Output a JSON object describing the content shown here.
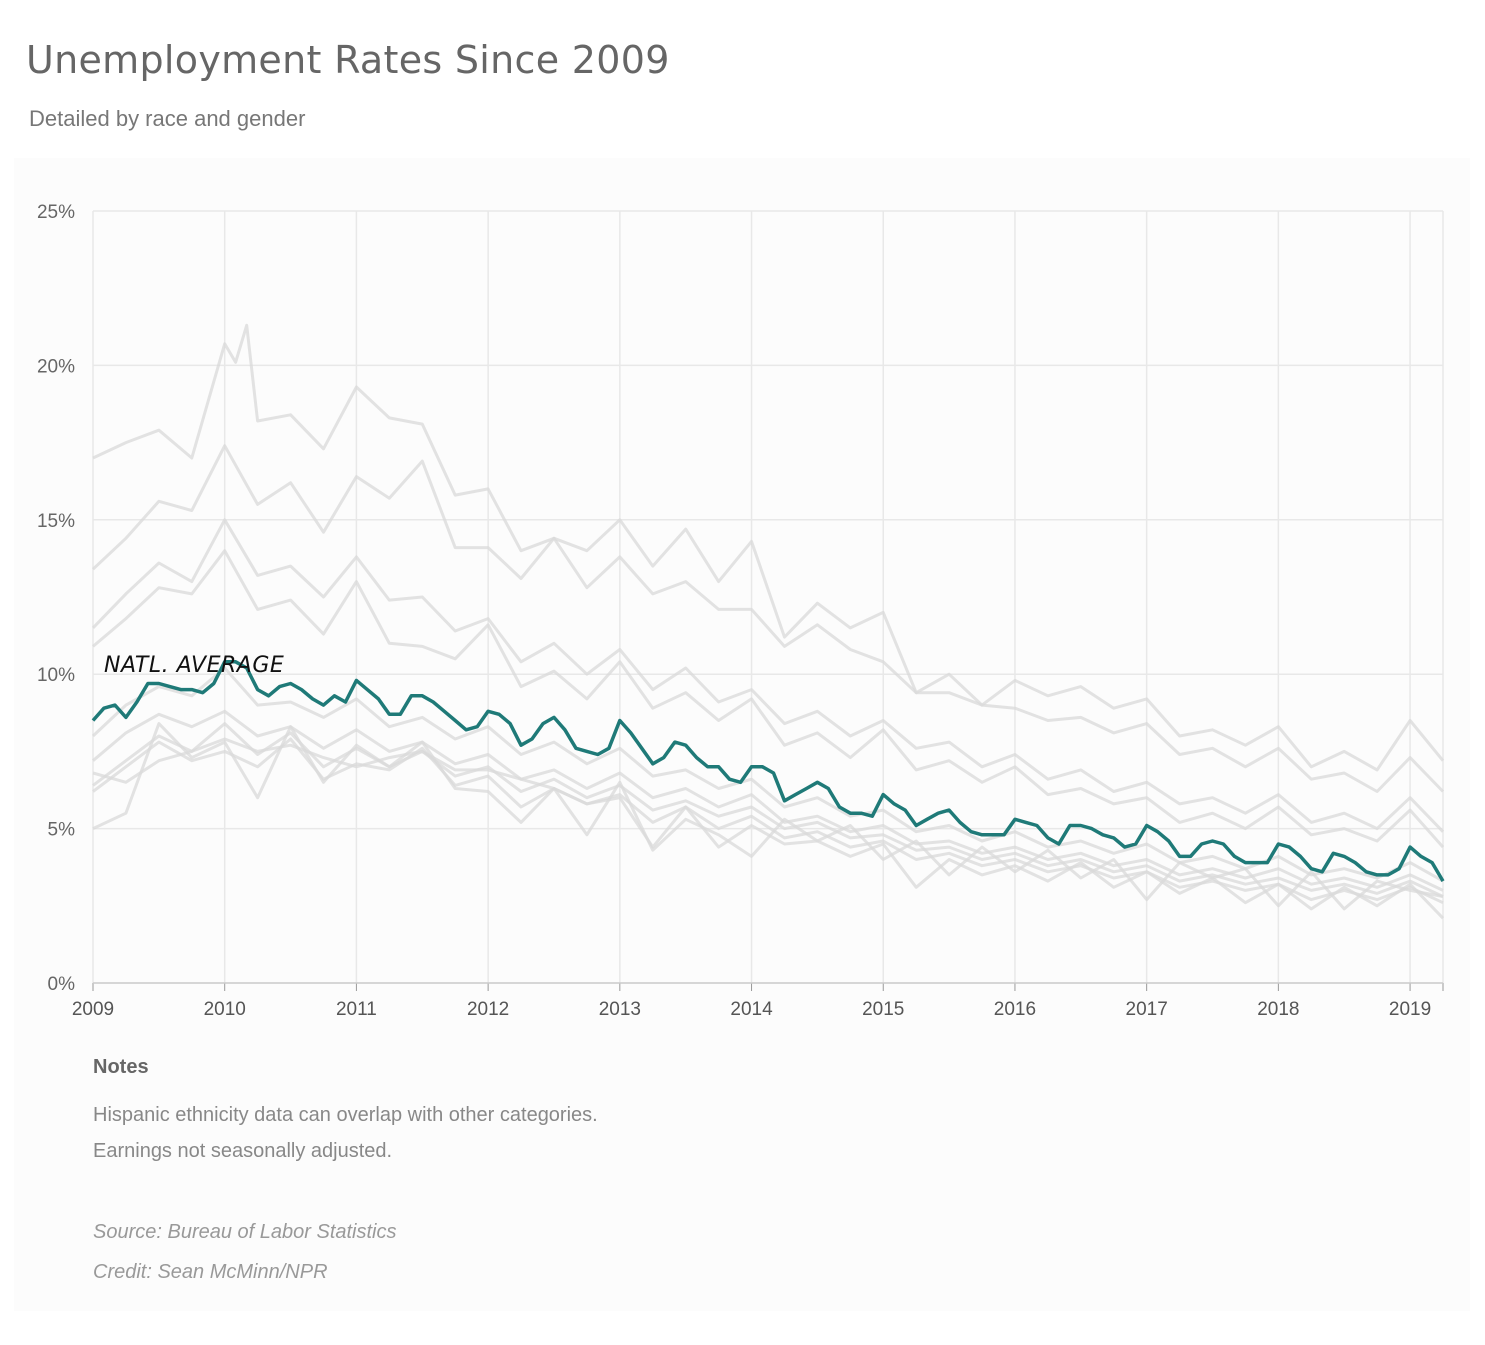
{
  "header": {
    "title": "Unemployment Rates Since 2009",
    "subtitle": "Detailed by race and gender"
  },
  "notes": {
    "heading": "Notes",
    "lines": [
      "Hispanic ethnicity data can overlap with other categories.",
      "Earnings not seasonally adjusted."
    ]
  },
  "footer": {
    "source": "Source: Bureau of Labor Statistics",
    "credit": "Credit: Sean McMinn/NPR"
  },
  "colors": {
    "highlight": "#1f7a78",
    "background_series": "#d9d9d9",
    "grid": "#e8e8e8"
  },
  "chart_data": {
    "type": "line",
    "title": "Unemployment Rates Since 2009",
    "subtitle": "Detailed by race and gender",
    "x_unit": "year",
    "xlim": [
      2009,
      2019.25
    ],
    "ylim": [
      0,
      25
    ],
    "x_ticks": [
      "2009",
      "2010",
      "2011",
      "2012",
      "2013",
      "2014",
      "2015",
      "2016",
      "2017",
      "2018",
      "2019"
    ],
    "y_ticks": [
      "0%",
      "5%",
      "10%",
      "15%",
      "20%",
      "25%"
    ],
    "grid": true,
    "annotation": {
      "text": "NATL. AVERAGE",
      "series": "highlight"
    },
    "highlight_series": {
      "x": [
        2009.0,
        2009.083,
        2009.167,
        2009.25,
        2009.333,
        2009.417,
        2009.5,
        2009.583,
        2009.667,
        2009.75,
        2009.833,
        2009.917,
        2010.0,
        2010.083,
        2010.167,
        2010.25,
        2010.333,
        2010.417,
        2010.5,
        2010.583,
        2010.667,
        2010.75,
        2010.833,
        2010.917,
        2011.0,
        2011.083,
        2011.167,
        2011.25,
        2011.333,
        2011.417,
        2011.5,
        2011.583,
        2011.667,
        2011.75,
        2011.833,
        2011.917,
        2012.0,
        2012.083,
        2012.167,
        2012.25,
        2012.333,
        2012.417,
        2012.5,
        2012.583,
        2012.667,
        2012.75,
        2012.833,
        2012.917,
        2013.0,
        2013.083,
        2013.167,
        2013.25,
        2013.333,
        2013.417,
        2013.5,
        2013.583,
        2013.667,
        2013.75,
        2013.833,
        2013.917,
        2014.0,
        2014.083,
        2014.167,
        2014.25,
        2014.333,
        2014.417,
        2014.5,
        2014.583,
        2014.667,
        2014.75,
        2014.833,
        2014.917,
        2015.0,
        2015.083,
        2015.167,
        2015.25,
        2015.333,
        2015.417,
        2015.5,
        2015.583,
        2015.667,
        2015.75,
        2015.833,
        2015.917,
        2016.0,
        2016.083,
        2016.167,
        2016.25,
        2016.333,
        2016.417,
        2016.5,
        2016.583,
        2016.667,
        2016.75,
        2016.833,
        2016.917,
        2017.0,
        2017.083,
        2017.167,
        2017.25,
        2017.333,
        2017.417,
        2017.5,
        2017.583,
        2017.667,
        2017.75,
        2017.833,
        2017.917,
        2018.0,
        2018.083,
        2018.167,
        2018.25,
        2018.333,
        2018.417,
        2018.5,
        2018.583,
        2018.667,
        2018.75,
        2018.833,
        2018.917,
        2019.0,
        2019.083,
        2019.167,
        2019.25
      ],
      "y": [
        8.5,
        8.9,
        9.0,
        8.6,
        9.1,
        9.7,
        9.7,
        9.6,
        9.5,
        9.5,
        9.4,
        9.7,
        10.4,
        10.4,
        10.2,
        9.5,
        9.3,
        9.6,
        9.7,
        9.5,
        9.2,
        9.0,
        9.3,
        9.1,
        9.8,
        9.5,
        9.2,
        8.7,
        8.7,
        9.3,
        9.3,
        9.1,
        8.8,
        8.5,
        8.2,
        8.3,
        8.8,
        8.7,
        8.4,
        7.7,
        7.9,
        8.4,
        8.6,
        8.2,
        7.6,
        7.5,
        7.4,
        7.6,
        8.5,
        8.1,
        7.6,
        7.1,
        7.3,
        7.8,
        7.7,
        7.3,
        7.0,
        7.0,
        6.6,
        6.5,
        7.0,
        7.0,
        6.8,
        5.9,
        6.1,
        6.3,
        6.5,
        6.3,
        5.7,
        5.5,
        5.5,
        5.4,
        6.1,
        5.8,
        5.6,
        5.1,
        5.3,
        5.5,
        5.6,
        5.2,
        4.9,
        4.8,
        4.8,
        4.8,
        5.3,
        5.2,
        5.1,
        4.7,
        4.5,
        5.1,
        5.1,
        5.0,
        4.8,
        4.7,
        4.4,
        4.5,
        5.1,
        4.9,
        4.6,
        4.1,
        4.1,
        4.5,
        4.6,
        4.5,
        4.1,
        3.9,
        3.9,
        3.9,
        4.5,
        4.4,
        4.1,
        3.7,
        3.6,
        4.2,
        4.1,
        3.9,
        3.6,
        3.5,
        3.5,
        3.7,
        4.4,
        4.1,
        3.9,
        3.3
      ]
    },
    "background_series": [
      {
        "x": [
          2009.0,
          2009.25,
          2009.5,
          2009.75,
          2010.0,
          2010.083,
          2010.167,
          2010.25,
          2010.5,
          2010.75,
          2011.0,
          2011.25,
          2011.5,
          2011.75,
          2012.0,
          2012.25,
          2012.5,
          2012.75,
          2013.0,
          2013.25,
          2013.5,
          2013.75,
          2014.0,
          2014.25,
          2014.5,
          2014.75,
          2015.0,
          2015.25,
          2015.5,
          2015.75,
          2016.0,
          2016.25,
          2016.5,
          2016.75,
          2017.0,
          2017.25,
          2017.5,
          2017.75,
          2018.0,
          2018.25,
          2018.5,
          2018.75,
          2019.0,
          2019.25
        ],
        "y": [
          17.0,
          17.5,
          17.9,
          17.0,
          20.7,
          20.1,
          21.3,
          18.2,
          18.4,
          17.3,
          19.3,
          18.3,
          18.1,
          15.8,
          16.0,
          14.0,
          14.4,
          14.0,
          15.0,
          13.5,
          14.7,
          13.0,
          14.3,
          11.2,
          12.3,
          11.5,
          12.0,
          9.4,
          10.0,
          9.0,
          9.8,
          9.3,
          9.6,
          8.9,
          9.2,
          8.0,
          8.2,
          7.7,
          8.3,
          7.0,
          7.5,
          6.9,
          8.5,
          7.2
        ]
      },
      {
        "x": [
          2009.0,
          2009.25,
          2009.5,
          2009.75,
          2010.0,
          2010.25,
          2010.5,
          2010.75,
          2011.0,
          2011.25,
          2011.5,
          2011.75,
          2012.0,
          2012.25,
          2012.5,
          2012.75,
          2013.0,
          2013.25,
          2013.5,
          2013.75,
          2014.0,
          2014.25,
          2014.5,
          2014.75,
          2015.0,
          2015.25,
          2015.5,
          2015.75,
          2016.0,
          2016.25,
          2016.5,
          2016.75,
          2017.0,
          2017.25,
          2017.5,
          2017.75,
          2018.0,
          2018.25,
          2018.5,
          2018.75,
          2019.0,
          2019.25
        ],
        "y": [
          13.4,
          14.4,
          15.6,
          15.3,
          17.4,
          15.5,
          16.2,
          14.6,
          16.4,
          15.7,
          16.9,
          14.1,
          14.1,
          13.1,
          14.4,
          12.8,
          13.8,
          12.6,
          13.0,
          12.1,
          12.1,
          10.9,
          11.6,
          10.8,
          10.4,
          9.4,
          9.4,
          9.0,
          8.9,
          8.5,
          8.6,
          8.1,
          8.4,
          7.4,
          7.6,
          7.0,
          7.6,
          6.6,
          6.8,
          6.2,
          7.3,
          6.2
        ]
      },
      {
        "x": [
          2009.0,
          2009.25,
          2009.5,
          2009.75,
          2010.0,
          2010.25,
          2010.5,
          2010.75,
          2011.0,
          2011.25,
          2011.5,
          2011.75,
          2012.0,
          2012.25,
          2012.5,
          2012.75,
          2013.0,
          2013.25,
          2013.5,
          2013.75,
          2014.0,
          2014.25,
          2014.5,
          2014.75,
          2015.0,
          2015.25,
          2015.5,
          2015.75,
          2016.0,
          2016.25,
          2016.5,
          2016.75,
          2017.0,
          2017.25,
          2017.5,
          2017.75,
          2018.0,
          2018.25,
          2018.5,
          2018.75,
          2019.0,
          2019.25
        ],
        "y": [
          11.5,
          12.6,
          13.6,
          13.0,
          15.0,
          13.2,
          13.5,
          12.5,
          13.8,
          12.4,
          12.5,
          11.4,
          11.8,
          10.4,
          11.0,
          10.0,
          10.8,
          9.5,
          10.2,
          9.1,
          9.5,
          8.4,
          8.8,
          8.0,
          8.5,
          7.6,
          7.8,
          7.0,
          7.4,
          6.6,
          6.9,
          6.2,
          6.5,
          5.8,
          6.0,
          5.5,
          6.1,
          5.2,
          5.5,
          5.0,
          6.0,
          4.9
        ]
      },
      {
        "x": [
          2009.0,
          2009.25,
          2009.5,
          2009.75,
          2010.0,
          2010.25,
          2010.5,
          2010.75,
          2011.0,
          2011.25,
          2011.5,
          2011.75,
          2012.0,
          2012.25,
          2012.5,
          2012.75,
          2013.0,
          2013.25,
          2013.5,
          2013.75,
          2014.0,
          2014.25,
          2014.5,
          2014.75,
          2015.0,
          2015.25,
          2015.5,
          2015.75,
          2016.0,
          2016.25,
          2016.5,
          2016.75,
          2017.0,
          2017.25,
          2017.5,
          2017.75,
          2018.0,
          2018.25,
          2018.5,
          2018.75,
          2019.0,
          2019.25
        ],
        "y": [
          10.9,
          11.8,
          12.8,
          12.6,
          14.0,
          12.1,
          12.4,
          11.3,
          13.0,
          11.0,
          10.9,
          10.5,
          11.6,
          9.6,
          10.1,
          9.2,
          10.4,
          8.9,
          9.4,
          8.5,
          9.2,
          7.7,
          8.1,
          7.3,
          8.2,
          6.9,
          7.2,
          6.5,
          7.0,
          6.1,
          6.3,
          5.8,
          6.0,
          5.2,
          5.5,
          5.0,
          5.7,
          4.8,
          5.0,
          4.6,
          5.6,
          4.4
        ]
      },
      {
        "x": [
          2009.0,
          2009.25,
          2009.5,
          2009.75,
          2010.0,
          2010.25,
          2010.5,
          2010.75,
          2011.0,
          2011.25,
          2011.5,
          2011.75,
          2012.0,
          2012.25,
          2012.5,
          2012.75,
          2013.0,
          2013.25,
          2013.5,
          2013.75,
          2014.0,
          2014.25,
          2014.5,
          2014.75,
          2015.0,
          2015.25,
          2015.5,
          2015.75,
          2016.0,
          2016.25,
          2016.5,
          2016.75,
          2017.0,
          2017.25,
          2017.5,
          2017.75,
          2018.0,
          2018.25,
          2018.5,
          2018.75,
          2019.0,
          2019.25
        ],
        "y": [
          8.0,
          9.0,
          9.6,
          9.3,
          10.2,
          9.0,
          9.1,
          8.6,
          9.2,
          8.3,
          8.6,
          7.9,
          8.3,
          7.4,
          7.8,
          7.1,
          7.6,
          6.7,
          6.9,
          6.3,
          6.6,
          5.7,
          6.0,
          5.4,
          5.6,
          4.9,
          5.1,
          4.6,
          4.9,
          4.4,
          4.6,
          4.2,
          4.5,
          3.9,
          4.1,
          3.7,
          4.1,
          3.5,
          3.7,
          3.4,
          3.9,
          3.3
        ]
      },
      {
        "x": [
          2009.0,
          2009.25,
          2009.5,
          2009.75,
          2010.0,
          2010.25,
          2010.5,
          2010.75,
          2011.0,
          2011.25,
          2011.5,
          2011.75,
          2012.0,
          2012.25,
          2012.5,
          2012.75,
          2013.0,
          2013.25,
          2013.5,
          2013.75,
          2014.0,
          2014.25,
          2014.5,
          2014.75,
          2015.0,
          2015.25,
          2015.5,
          2015.75,
          2016.0,
          2016.25,
          2016.5,
          2016.75,
          2017.0,
          2017.25,
          2017.5,
          2017.75,
          2018.0,
          2018.25,
          2018.5,
          2018.75,
          2019.0,
          2019.25
        ],
        "y": [
          7.2,
          8.1,
          8.7,
          8.3,
          8.8,
          8.0,
          8.3,
          7.6,
          8.2,
          7.5,
          7.8,
          7.1,
          7.4,
          6.6,
          6.9,
          6.3,
          6.8,
          6.0,
          6.3,
          5.7,
          6.1,
          5.2,
          5.4,
          4.9,
          5.1,
          4.5,
          4.6,
          4.2,
          4.4,
          4.0,
          4.2,
          3.8,
          4.0,
          3.5,
          3.7,
          3.4,
          3.7,
          3.2,
          3.4,
          3.1,
          3.5,
          3.0
        ]
      },
      {
        "x": [
          2009.0,
          2009.25,
          2009.5,
          2009.75,
          2010.0,
          2010.25,
          2010.5,
          2010.75,
          2011.0,
          2011.25,
          2011.5,
          2011.75,
          2012.0,
          2012.25,
          2012.5,
          2012.75,
          2013.0,
          2013.25,
          2013.5,
          2013.75,
          2014.0,
          2014.25,
          2014.5,
          2014.75,
          2015.0,
          2015.25,
          2015.5,
          2015.75,
          2016.0,
          2016.25,
          2016.5,
          2016.75,
          2017.0,
          2017.25,
          2017.5,
          2017.75,
          2018.0,
          2018.25,
          2018.5,
          2018.75,
          2019.0,
          2019.25
        ],
        "y": [
          6.4,
          7.2,
          8.0,
          7.5,
          8.4,
          7.4,
          8.1,
          7.0,
          7.6,
          7.0,
          7.5,
          6.7,
          7.0,
          6.2,
          6.6,
          6.0,
          6.4,
          5.6,
          5.9,
          5.4,
          5.7,
          5.0,
          5.2,
          4.7,
          4.8,
          4.3,
          4.4,
          4.0,
          4.2,
          3.8,
          4.0,
          3.6,
          3.8,
          3.3,
          3.5,
          3.2,
          3.4,
          3.0,
          3.2,
          2.9,
          3.3,
          2.8
        ]
      },
      {
        "x": [
          2009.0,
          2009.25,
          2009.5,
          2009.75,
          2010.0,
          2010.25,
          2010.5,
          2010.75,
          2011.0,
          2011.25,
          2011.5,
          2011.75,
          2012.0,
          2012.25,
          2012.5,
          2012.75,
          2013.0,
          2013.25,
          2013.5,
          2013.75,
          2014.0,
          2014.25,
          2014.5,
          2014.75,
          2015.0,
          2015.25,
          2015.5,
          2015.75,
          2016.0,
          2016.25,
          2016.5,
          2016.75,
          2017.0,
          2017.25,
          2017.5,
          2017.75,
          2018.0,
          2018.25,
          2018.5,
          2018.75,
          2019.0,
          2019.25
        ],
        "y": [
          6.2,
          7.0,
          7.8,
          7.2,
          7.5,
          7.0,
          7.9,
          6.6,
          7.1,
          6.9,
          7.6,
          6.4,
          6.7,
          5.7,
          6.3,
          5.8,
          6.1,
          5.2,
          5.7,
          5.0,
          5.4,
          4.7,
          4.9,
          4.4,
          4.6,
          4.0,
          4.2,
          3.8,
          4.0,
          3.6,
          3.8,
          3.4,
          3.6,
          3.1,
          3.3,
          3.0,
          3.2,
          2.7,
          3.0,
          2.7,
          3.1,
          2.6
        ]
      },
      {
        "x": [
          2009.0,
          2009.25,
          2009.5,
          2009.75,
          2010.0,
          2010.25,
          2010.5,
          2010.75,
          2011.0,
          2011.25,
          2011.5,
          2011.75,
          2012.0,
          2012.25,
          2012.5,
          2012.75,
          2013.0,
          2013.25,
          2013.5,
          2013.75,
          2014.0,
          2014.25,
          2014.5,
          2014.75,
          2015.0,
          2015.25,
          2015.5,
          2015.75,
          2016.0,
          2016.25,
          2016.5,
          2016.75,
          2017.0,
          2017.25,
          2017.5,
          2017.75,
          2018.0,
          2018.25,
          2018.5,
          2018.75,
          2019.0,
          2019.25
        ],
        "y": [
          5.0,
          5.5,
          8.4,
          7.3,
          7.8,
          6.0,
          8.3,
          6.5,
          7.7,
          7.0,
          7.8,
          6.3,
          6.2,
          5.2,
          6.3,
          5.8,
          6.0,
          4.4,
          5.7,
          4.4,
          5.1,
          4.5,
          4.6,
          4.1,
          4.5,
          3.1,
          4.0,
          3.5,
          3.8,
          3.3,
          3.9,
          3.1,
          3.6,
          2.9,
          3.4,
          2.6,
          3.2,
          2.4,
          3.1,
          2.5,
          3.2,
          2.1
        ]
      },
      {
        "x": [
          2009.0,
          2009.25,
          2009.5,
          2009.75,
          2010.0,
          2010.25,
          2010.5,
          2010.75,
          2011.0,
          2011.25,
          2011.5,
          2011.75,
          2012.0,
          2012.25,
          2012.5,
          2012.75,
          2013.0,
          2013.25,
          2013.5,
          2013.75,
          2014.0,
          2014.25,
          2014.5,
          2014.75,
          2015.0,
          2015.25,
          2015.5,
          2015.75,
          2016.0,
          2016.25,
          2016.5,
          2016.75,
          2017.0,
          2017.25,
          2017.5,
          2017.75,
          2018.0,
          2018.25,
          2018.5,
          2018.75,
          2019.0,
          2019.25
        ],
        "y": [
          6.8,
          6.5,
          7.2,
          7.5,
          7.9,
          7.5,
          7.7,
          7.3,
          7.0,
          7.3,
          7.5,
          6.9,
          6.9,
          6.6,
          6.3,
          4.8,
          6.5,
          4.3,
          5.3,
          4.8,
          4.1,
          5.3,
          4.6,
          5.1,
          4.0,
          4.6,
          3.5,
          4.4,
          3.6,
          4.3,
          3.4,
          4.0,
          2.7,
          3.9,
          3.4,
          3.7,
          2.5,
          3.6,
          2.4,
          3.3,
          3.0,
          2.8
        ]
      }
    ]
  }
}
